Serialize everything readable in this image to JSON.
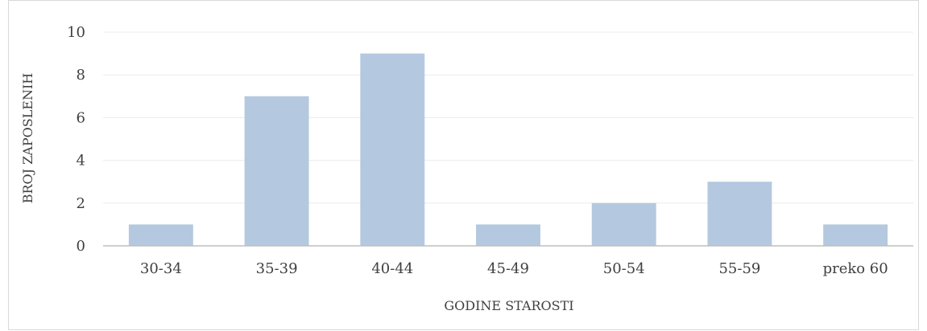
{
  "chart_data": {
    "type": "bar",
    "title": "",
    "categories": [
      "30-34",
      "35-39",
      "40-44",
      "45-49",
      "50-54",
      "55-59",
      "preko 60"
    ],
    "values": [
      1,
      7,
      9,
      1,
      2,
      3,
      1
    ],
    "xlabel": "GODINE STAROSTI",
    "ylabel": "BROJ ZAPOSLENIH",
    "ylim": [
      0,
      10
    ],
    "yticks": [
      0,
      2,
      4,
      6,
      8,
      10
    ],
    "grid": true,
    "legend": "none"
  },
  "colors": {
    "bar": "#b4c9df",
    "gridline": "#ececec",
    "axis": "#bfbfbf",
    "frame": "#d9d9d9",
    "text": "#404040"
  }
}
